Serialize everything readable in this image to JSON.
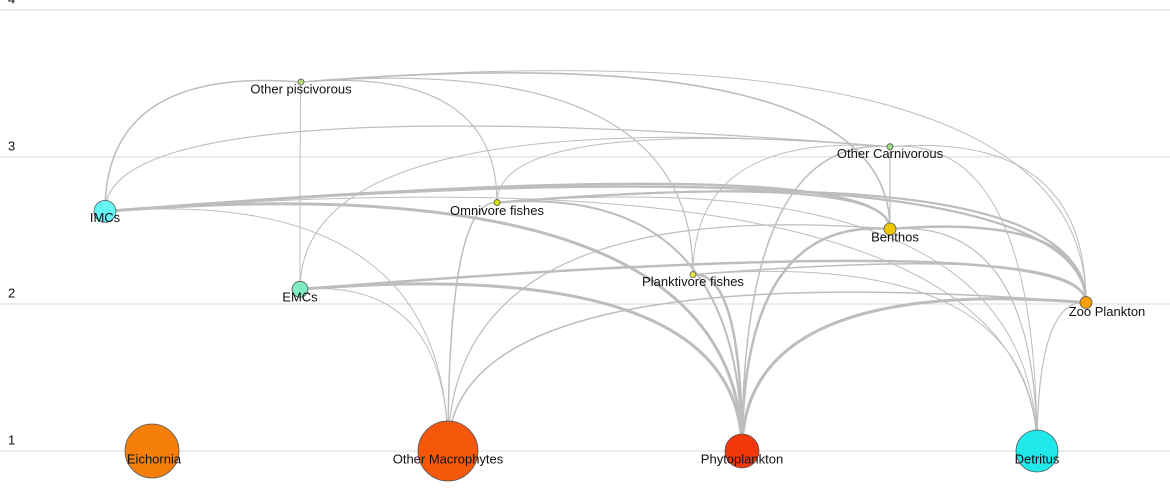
{
  "axis": {
    "ylim": [
      1,
      4
    ],
    "yticks": [
      1,
      2,
      3,
      4
    ]
  },
  "nodes": [
    {
      "label": "Other piscivorous",
      "level": 3.51,
      "color": "#b8e07a"
    },
    {
      "label": "Other Carnivorous",
      "level": 3.07,
      "color": "#9be07a"
    },
    {
      "label": "IMCs",
      "level": 2.63,
      "color": "#66f5f2"
    },
    {
      "label": "Omnivore fishes",
      "level": 2.69,
      "color": "#d8e000"
    },
    {
      "label": "Benthos",
      "level": 2.51,
      "color": "#f0c800"
    },
    {
      "label": "Planktivore fishes",
      "level": 2.2,
      "color": "#e6e640"
    },
    {
      "label": "EMCs",
      "level": 2.1,
      "color": "#7eecc0"
    },
    {
      "label": "Zoo Plankton",
      "level": 2.01,
      "color": "#f5a000"
    },
    {
      "label": "Eichornia",
      "level": 1,
      "color": "#f57f0a"
    },
    {
      "label": "Other Macrophytes",
      "level": 1,
      "color": "#f5580a"
    },
    {
      "label": "Phytoplankton",
      "level": 1,
      "color": "#f0380a"
    },
    {
      "label": "Detritus",
      "level": 1,
      "color": "#1ee8ea"
    }
  ],
  "links": [
    {
      "source": 2,
      "target": 0
    },
    {
      "source": 3,
      "target": 0
    },
    {
      "source": 5,
      "target": 0
    },
    {
      "source": 6,
      "target": 0
    },
    {
      "source": 7,
      "target": 0
    },
    {
      "source": 4,
      "target": 0
    },
    {
      "source": 3,
      "target": 1
    },
    {
      "source": 4,
      "target": 1
    },
    {
      "source": 5,
      "target": 1
    },
    {
      "source": 7,
      "target": 1
    },
    {
      "source": 2,
      "target": 1
    },
    {
      "source": 6,
      "target": 1
    },
    {
      "source": 10,
      "target": 2
    },
    {
      "source": 10,
      "target": 3
    },
    {
      "source": 10,
      "target": 4
    },
    {
      "source": 10,
      "target": 5
    },
    {
      "source": 10,
      "target": 6
    },
    {
      "source": 10,
      "target": 7
    },
    {
      "source": 10,
      "target": 1
    },
    {
      "source": 9,
      "target": 2
    },
    {
      "source": 9,
      "target": 3
    },
    {
      "source": 9,
      "target": 4
    },
    {
      "source": 9,
      "target": 6
    },
    {
      "source": 9,
      "target": 7
    },
    {
      "source": 11,
      "target": 2
    },
    {
      "source": 11,
      "target": 3
    },
    {
      "source": 11,
      "target": 4
    },
    {
      "source": 11,
      "target": 5
    },
    {
      "source": 11,
      "target": 7
    },
    {
      "source": 11,
      "target": 1
    },
    {
      "source": 7,
      "target": 2
    },
    {
      "source": 7,
      "target": 3
    },
    {
      "source": 7,
      "target": 5
    },
    {
      "source": 7,
      "target": 4
    },
    {
      "source": 4,
      "target": 2
    },
    {
      "source": 4,
      "target": 3
    },
    {
      "source": 2,
      "target": 7
    },
    {
      "source": 6,
      "target": 7
    },
    {
      "source": 3,
      "target": 7
    }
  ]
}
